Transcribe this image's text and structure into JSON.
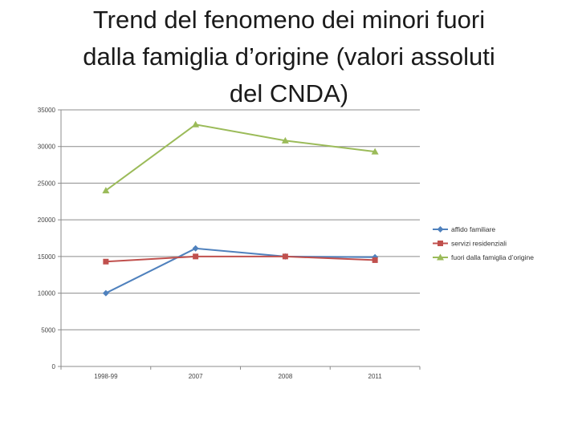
{
  "title_lines": [
    "Trend del fenomeno dei minori  fuori",
    "dalla famiglia d’origine (valori assoluti",
    "del CNDA)"
  ],
  "chart_data": {
    "type": "line",
    "title": "Trend del fenomeno dei minori  fuori dalla famiglia d’origine (valori assoluti del CNDA)",
    "categories": [
      "1998-99",
      "2007",
      "2008",
      "2011"
    ],
    "ylim": [
      0,
      35000
    ],
    "yticks": [
      0,
      5000,
      10000,
      15000,
      20000,
      25000,
      30000,
      35000
    ],
    "grid": true,
    "legend": "right",
    "series": [
      {
        "name": "affido familiare",
        "values": [
          10000,
          16100,
          15000,
          14900
        ],
        "color": "#4f81bd",
        "marker": "diamond"
      },
      {
        "name": "servizi residenziali",
        "values": [
          14300,
          15000,
          15000,
          14500
        ],
        "color": "#c0504d",
        "marker": "square"
      },
      {
        "name": "fuori dalla famiglia d’origine",
        "values": [
          24000,
          33000,
          30800,
          29300
        ],
        "color": "#9bbb59",
        "marker": "triangle"
      }
    ]
  }
}
